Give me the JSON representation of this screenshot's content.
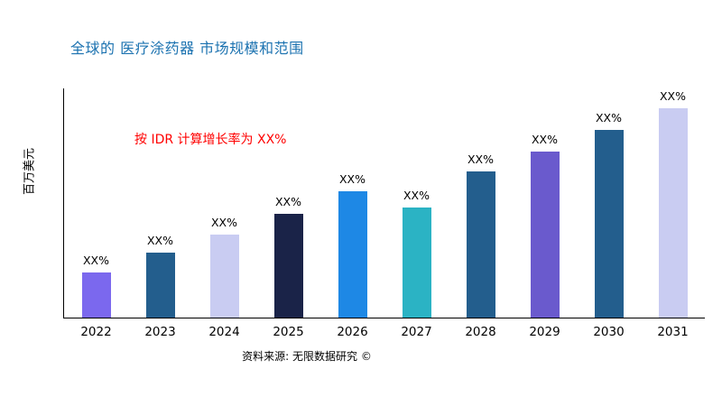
{
  "title": "全球的 医疗涂药器 市场规模和范围",
  "annotation": "按 IDR 计算增长率为 XX%",
  "source": "资料来源: 无限数据研究 ©",
  "colors": {
    "title": "#1B72B0",
    "annotation": "#FF0000",
    "axis": "#000000",
    "background": "#FFFFFF"
  },
  "chart_data": {
    "type": "bar",
    "title": "全球的 医疗涂药器 市场规模和范围",
    "ylabel": "百万美元",
    "xlabel": "",
    "categories": [
      "2022",
      "2023",
      "2024",
      "2025",
      "2026",
      "2027",
      "2028",
      "2029",
      "2030",
      "2031"
    ],
    "values": [
      50,
      72,
      92,
      115,
      140,
      122,
      162,
      184,
      208,
      232
    ],
    "bar_labels": [
      "XX%",
      "XX%",
      "XX%",
      "XX%",
      "XX%",
      "XX%",
      "XX%",
      "XX%",
      "XX%",
      "XX%"
    ],
    "bar_colors": [
      "#7B68EE",
      "#235E8D",
      "#C9CCF2",
      "#1A2348",
      "#1E88E5",
      "#2BB3C4",
      "#235E8D",
      "#6A5ACD",
      "#235E8D",
      "#C9CCF2"
    ],
    "ylim": [
      0,
      254
    ],
    "grid": false,
    "legend_position": "none",
    "annotation": "按 IDR 计算增长率为 XX%"
  }
}
